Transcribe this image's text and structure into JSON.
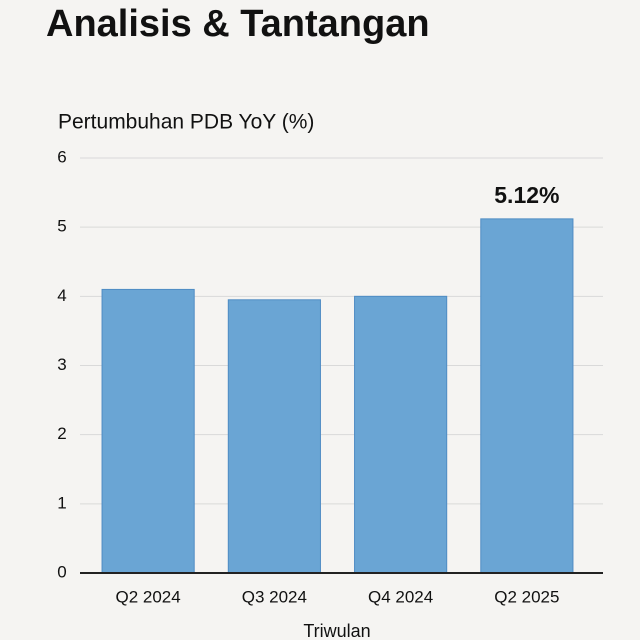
{
  "chart_data": {
    "type": "bar",
    "title": "Analisis & Tantangan",
    "y_label": "Pertumbuhan PDB YoY (%)",
    "x_label": "Triwulan",
    "categories": [
      "Q2 2024",
      "Q3 2024",
      "Q4 2024",
      "Q2 2025"
    ],
    "values": [
      4.1,
      3.95,
      4.0,
      5.12
    ],
    "value_labels": [
      null,
      null,
      null,
      "5.12%"
    ],
    "color": "#6aa5d4",
    "ylim": [
      0,
      6
    ],
    "yticks": [
      0,
      1,
      2,
      3,
      4,
      5,
      6
    ],
    "grid": true
  }
}
